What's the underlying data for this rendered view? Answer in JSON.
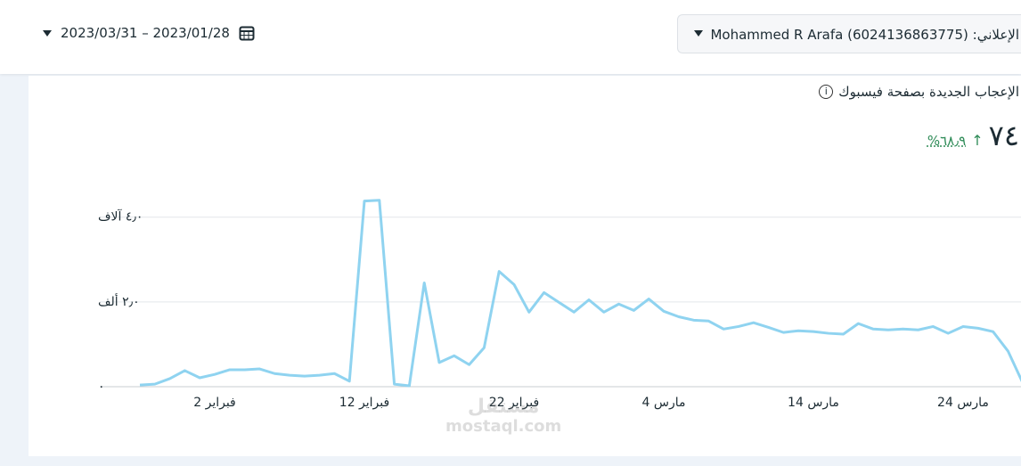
{
  "header": {
    "date_range": "2023/03/31 – 2023/01/28",
    "account": "الإعلاني: Mohammed R Arafa (6024136863775)"
  },
  "card": {
    "metric": "٧٤",
    "change": "٦٨٫٩%"
  },
  "watermark": {
    "brand": "مستقل",
    "site": "mostaql.com"
  },
  "chart_data": {
    "type": "line",
    "title": "الإعجاب الجديدة بصفحة فيسبوك",
    "color": "#8fd3f0",
    "grid": true,
    "categories": [
      null,
      null,
      null,
      null,
      null,
      "2 فبراير",
      null,
      null,
      null,
      null,
      null,
      null,
      null,
      null,
      null,
      "12 فبراير",
      null,
      null,
      null,
      null,
      null,
      null,
      null,
      null,
      null,
      "22 فبراير",
      null,
      null,
      null,
      null,
      null,
      null,
      null,
      null,
      null,
      "4 مارس",
      null,
      null,
      null,
      null,
      null,
      null,
      null,
      null,
      null,
      "14 مارس",
      null,
      null,
      null,
      null,
      null,
      null,
      null,
      null,
      null,
      "24 مارس",
      null,
      null,
      null,
      null
    ],
    "values": [
      40,
      60,
      190,
      380,
      210,
      290,
      400,
      400,
      420,
      310,
      270,
      250,
      270,
      310,
      130,
      4380,
      4400,
      60,
      20,
      2450,
      570,
      730,
      520,
      920,
      2720,
      2410,
      1760,
      2220,
      1990,
      1760,
      2050,
      1760,
      1950,
      1800,
      2070,
      1780,
      1650,
      1570,
      1550,
      1360,
      1420,
      1510,
      1400,
      1280,
      1320,
      1300,
      1260,
      1240,
      1490,
      1360,
      1340,
      1360,
      1340,
      1420,
      1260,
      1420,
      1380,
      1300,
      840,
      80
    ],
    "ylim": [
      0,
      4400
    ],
    "yticks": [
      {
        "value": 0,
        "label": "٠"
      },
      {
        "value": 2000,
        "label": "٢٫٠ ألف"
      },
      {
        "value": 4000,
        "label": "٤٫٠ آلاف"
      }
    ]
  }
}
